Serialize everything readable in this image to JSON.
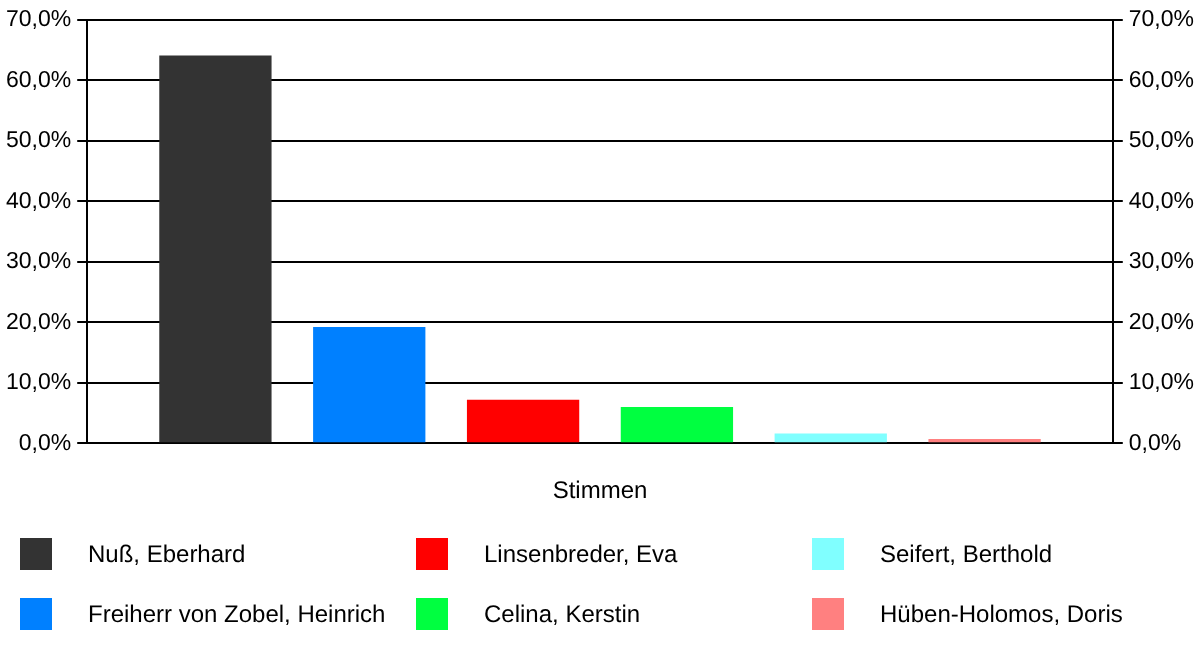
{
  "chart_data": {
    "type": "bar",
    "categories": [
      "Stimmen"
    ],
    "series": [
      {
        "name": "Nuß, Eberhard",
        "color": "#333333",
        "values": [
          64.1
        ]
      },
      {
        "name": "Freiherr von Zobel, Heinrich",
        "color": "#0080ff",
        "values": [
          19.2
        ]
      },
      {
        "name": "Linsenbreder, Eva",
        "color": "#ff0000",
        "values": [
          7.2
        ]
      },
      {
        "name": "Celina, Kerstin",
        "color": "#00ff40",
        "values": [
          6.0
        ]
      },
      {
        "name": "Seifert, Berthold",
        "color": "#80ffff",
        "values": [
          1.6
        ]
      },
      {
        "name": "Hüben-Holomos, Doris",
        "color": "#ff8080",
        "values": [
          0.7
        ]
      }
    ],
    "ylim": [
      0,
      70
    ],
    "yticks": [
      {
        "value": 0,
        "label": "0,0%"
      },
      {
        "value": 10,
        "label": "10,0%"
      },
      {
        "value": 20,
        "label": "20,0%"
      },
      {
        "value": 30,
        "label": "30,0%"
      },
      {
        "value": 40,
        "label": "40,0%"
      },
      {
        "value": 50,
        "label": "50,0%"
      },
      {
        "value": 60,
        "label": "60,0%"
      },
      {
        "value": 70,
        "label": "70,0%"
      }
    ],
    "grid": "y",
    "legend": "bottom"
  }
}
